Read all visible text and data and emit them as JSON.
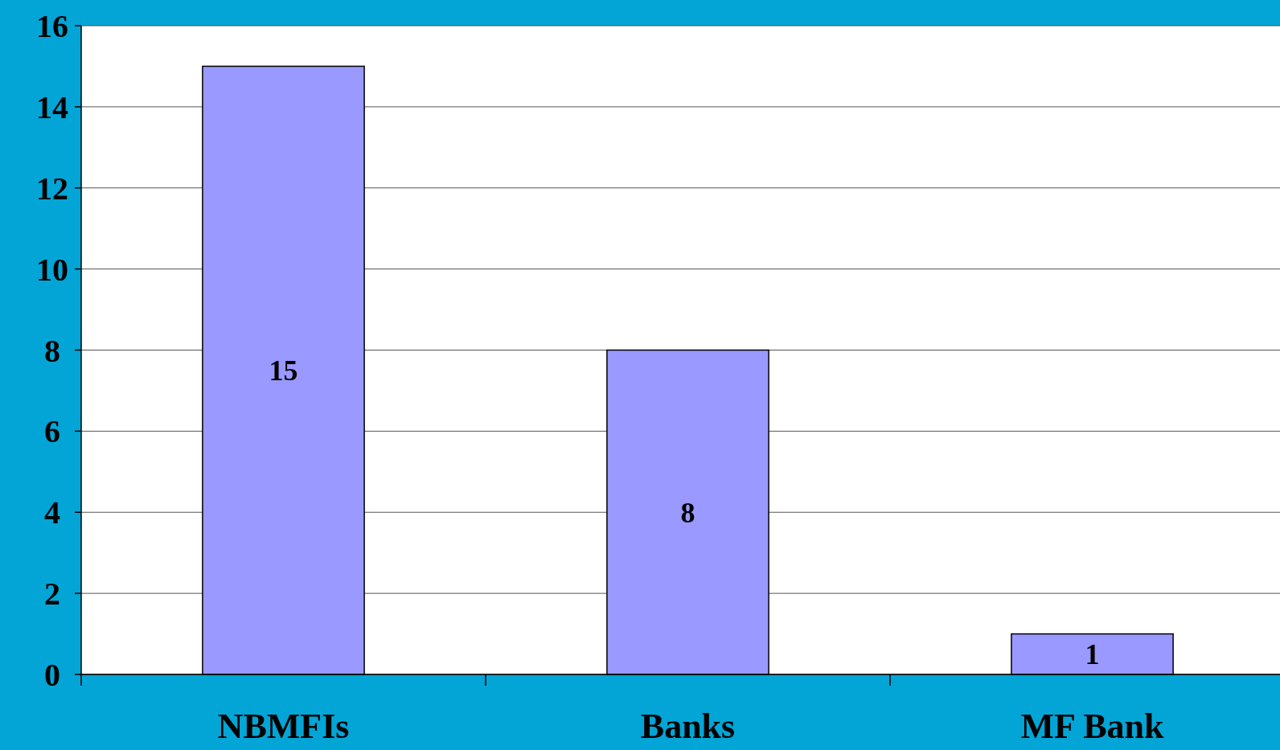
{
  "chart_data": {
    "type": "bar",
    "categories": [
      "NBMFIs",
      "Banks",
      "MF Bank"
    ],
    "values": [
      15,
      8,
      1
    ],
    "color": "#9999ff",
    "ylim": [
      0,
      16
    ],
    "yticks": [
      0,
      2,
      4,
      6,
      8,
      10,
      12,
      14,
      16
    ],
    "grid": "y",
    "data_labels": true
  }
}
